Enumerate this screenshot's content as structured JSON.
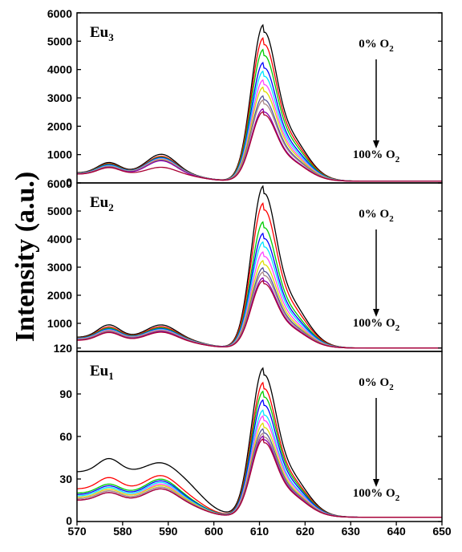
{
  "chart_data": [
    {
      "type": "line",
      "label": "Eu",
      "label_sub": "3",
      "ylim": [
        0,
        6000
      ],
      "yticks": [
        0,
        1000,
        2000,
        3000,
        4000,
        5000,
        6000
      ],
      "annotation_top": "0% O",
      "annotation_top_sub": "2",
      "annotation_bottom": "100% O",
      "annotation_bottom_sub": "2",
      "peaks": [
        5400,
        4950,
        4550,
        4100,
        3800,
        3500,
        3250,
        2950,
        2800,
        2500,
        2400
      ],
      "band577": [
        600,
        560,
        540,
        520,
        500,
        480,
        470,
        460,
        450,
        440,
        430
      ],
      "band588": [
        900,
        830,
        800,
        780,
        760,
        740,
        720,
        700,
        690,
        680,
        450
      ],
      "base_left": [
        300,
        290,
        285,
        280,
        275,
        270,
        265,
        260,
        255,
        250,
        250
      ],
      "tail": 60
    },
    {
      "type": "line",
      "label": "Eu",
      "label_sub": "2",
      "ylim": [
        0,
        6000
      ],
      "yticks": [
        120,
        1000,
        2000,
        3000,
        4000,
        5000,
        6000
      ],
      "annotation_top": "0% O",
      "annotation_top_sub": "2",
      "annotation_bottom": "100% O",
      "annotation_bottom_sub": "2",
      "peaks": [
        5650,
        5050,
        4400,
        4000,
        3700,
        3350,
        3050,
        2800,
        2650,
        2450,
        2350
      ],
      "band577": [
        750,
        680,
        640,
        610,
        590,
        570,
        550,
        540,
        530,
        510,
        500
      ],
      "band588": [
        760,
        700,
        660,
        630,
        610,
        590,
        570,
        560,
        550,
        540,
        520
      ],
      "base_left": [
        380,
        360,
        350,
        340,
        330,
        320,
        310,
        300,
        290,
        280,
        270
      ],
      "tail": 120
    },
    {
      "type": "line",
      "label": "Eu",
      "label_sub": "1",
      "ylim": [
        0,
        120
      ],
      "yticks": [
        0,
        30,
        60,
        90
      ],
      "annotation_top": "0% O",
      "annotation_top_sub": "2",
      "annotation_bottom": "100% O",
      "annotation_bottom_sub": "2",
      "peaks": [
        103,
        93,
        87,
        81,
        74,
        70,
        65,
        61,
        58,
        56,
        54
      ],
      "band577": [
        35,
        24,
        20,
        19,
        18,
        17,
        17,
        16,
        16,
        15,
        15
      ],
      "band588": [
        33,
        26,
        24,
        23,
        22,
        21,
        20,
        19,
        19,
        18,
        18
      ],
      "base_left": [
        32,
        20,
        17,
        16,
        15,
        14,
        14,
        13,
        13,
        12,
        12
      ],
      "tail": 3
    }
  ],
  "xlim": [
    570,
    650
  ],
  "xticks": [
    570,
    580,
    590,
    600,
    610,
    620,
    630,
    640,
    650
  ],
  "ylabel": "Intensity (a.u.)",
  "series_colors": [
    "#000000",
    "#ff0000",
    "#00cc00",
    "#0000ff",
    "#00e5ff",
    "#ff44ff",
    "#dddd00",
    "#555599",
    "#aa8888",
    "#8800aa",
    "#aa0033"
  ]
}
